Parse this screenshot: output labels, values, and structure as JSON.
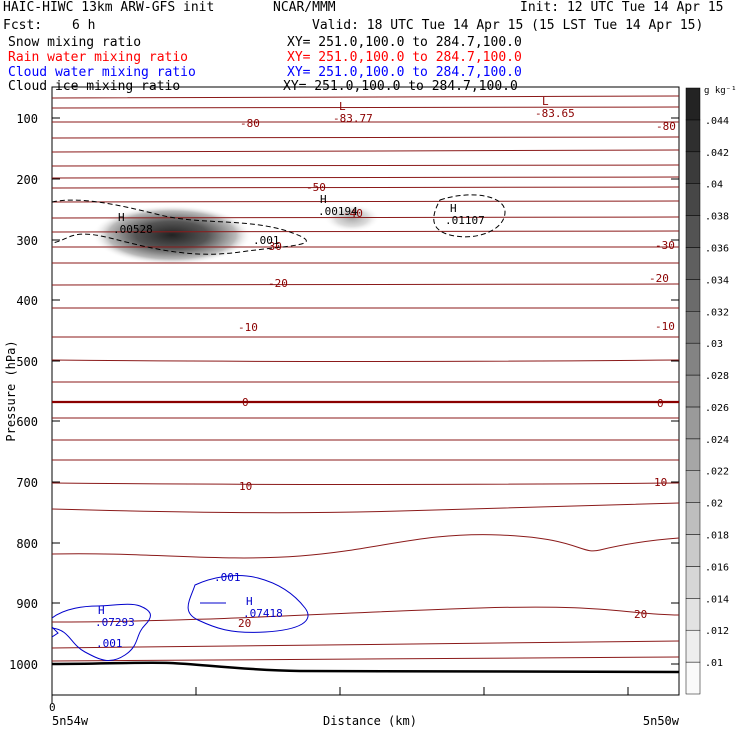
{
  "header": {
    "model": "HAIC-HIWC 13km ARW-GFS init",
    "org": "NCAR/MMM",
    "init": "Init: 12 UTC Tue 14 Apr 15",
    "fcst_label": "Fcst:",
    "fcst_value": "6 h",
    "valid": "Valid: 18 UTC Tue 14 Apr 15 (15 LST Tue 14 Apr 15)"
  },
  "fields": [
    {
      "name": "Snow mixing ratio",
      "xy": "XY= 251.0,100.0 to 284.7,100.0",
      "color": "#000000"
    },
    {
      "name": "Rain water mixing ratio",
      "xy": "XY= 251.0,100.0 to 284.7,100.0",
      "color": "#ff0000"
    },
    {
      "name": "Cloud water mixing ratio",
      "xy": "XY= 251.0,100.0 to 284.7,100.0",
      "color": "#0000ff"
    },
    {
      "name": "Cloud ice mixing ratio",
      "xy": "XY= 251.0,100.0 to 284.7,100.0",
      "color": "#000000"
    }
  ],
  "chart_data": {
    "type": "heatmap",
    "xlabel": "Distance (km)",
    "ylabel": "Pressure (hPa)",
    "x_start_label": "5n54w",
    "x_end_label": "5n50w",
    "x_zero_label": "0",
    "ylim": [
      1040,
      50
    ],
    "yticks": [
      100,
      200,
      300,
      400,
      500,
      600,
      700,
      800,
      900,
      1000
    ],
    "colorbar": {
      "unit": "g kg⁻¹",
      "levels": [
        ".01",
        ".012",
        ".014",
        ".016",
        ".018",
        ".02",
        ".022",
        ".024",
        ".026",
        ".028",
        ".03",
        ".032",
        ".034",
        ".036",
        ".038",
        ".04",
        ".042",
        ".044"
      ]
    },
    "temperature_contour_labels": [
      "-80",
      "-80",
      "-50",
      "-40",
      "-30",
      "-30",
      "-20",
      "-20",
      "-10",
      "-10",
      "0",
      "0",
      "10",
      "10",
      "20",
      "20"
    ],
    "extrema": [
      {
        "mark": "L",
        "value": "-83.77",
        "color": "#8b0000"
      },
      {
        "mark": "L",
        "value": "-83.65",
        "color": "#8b0000"
      },
      {
        "mark": "H",
        "value": ".00528",
        "color": "#000000"
      },
      {
        "mark": "H",
        "value": ".00194",
        "color": "#000000"
      },
      {
        "mark": "H",
        "value": ".01107",
        "color": "#000000"
      },
      {
        "mark": "H",
        "value": ".07293",
        "color": "#0000cc"
      },
      {
        "mark": "H",
        "value": ".07418",
        "color": "#0000cc"
      }
    ],
    "contour_labels": [
      {
        "value": ".001",
        "color": "#000000"
      },
      {
        "value": ".001",
        "color": "#0000cc"
      },
      {
        "value": ".001",
        "color": "#0000cc"
      }
    ],
    "colors": {
      "temperature": "#8b1a1a",
      "zero_isotherm": "#8b0000",
      "terrain": "#000000"
    }
  }
}
